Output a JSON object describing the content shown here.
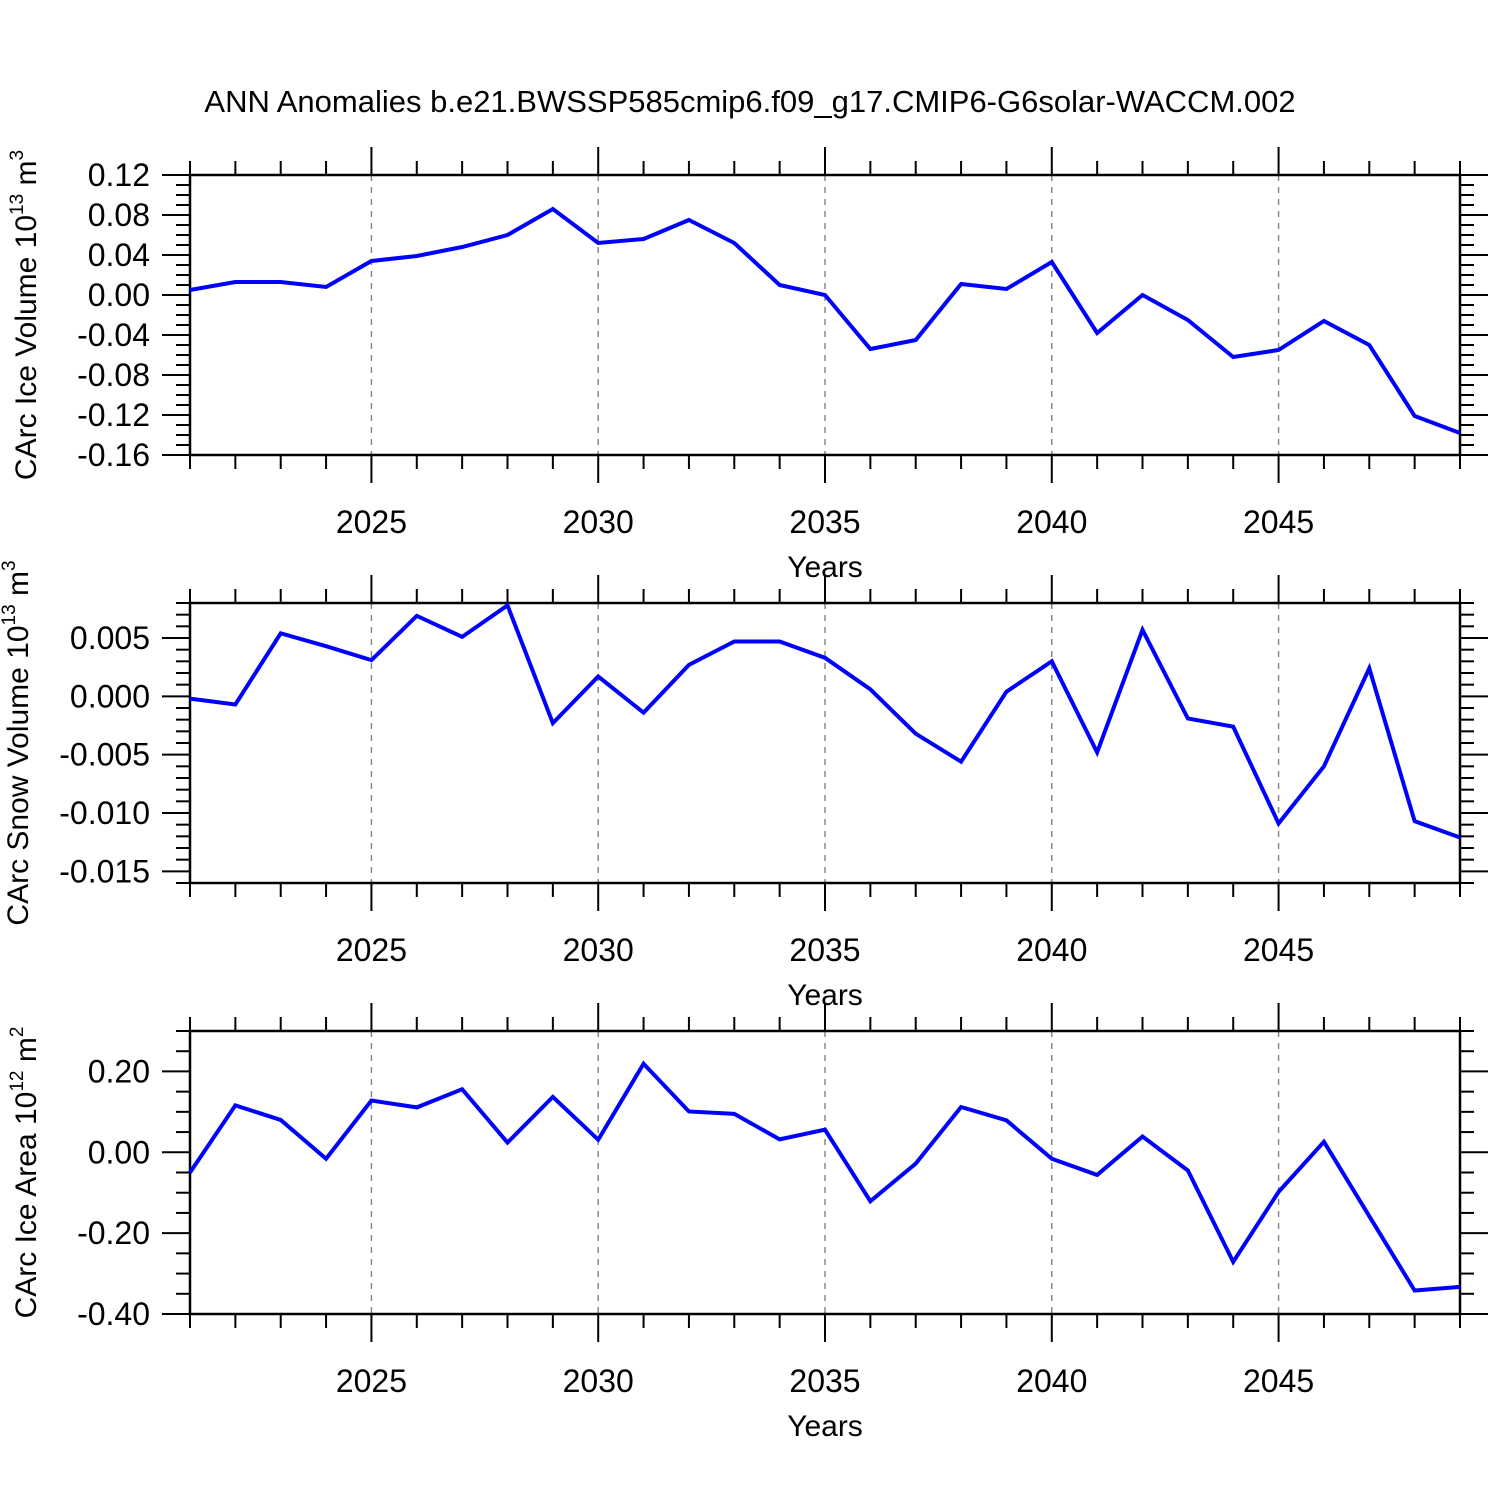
{
  "title": "ANN Anomalies b.e21.BWSSP585cmip6.f09_g17.CMIP6-G6solar-WACCM.002",
  "figure": {
    "background": "#ffffff",
    "line_color": "#0000ff",
    "grid_color": "#888888",
    "axis_color": "#000000"
  },
  "chart_data": [
    {
      "type": "line",
      "name": "ice-volume",
      "xlabel": "Years",
      "ylabel_parts": [
        {
          "t": "CArc Ice Volume 10"
        },
        {
          "t": "13",
          "sup": true
        },
        {
          "t": " m"
        },
        {
          "t": "3",
          "sup": true
        }
      ],
      "x": [
        2021,
        2022,
        2023,
        2024,
        2025,
        2026,
        2027,
        2028,
        2029,
        2030,
        2031,
        2032,
        2033,
        2034,
        2035,
        2036,
        2037,
        2038,
        2039,
        2040,
        2041,
        2042,
        2043,
        2044,
        2045,
        2046,
        2047,
        2048,
        2049
      ],
      "values": [
        0.005,
        0.013,
        0.013,
        0.008,
        0.034,
        0.039,
        0.048,
        0.06,
        0.086,
        0.052,
        0.056,
        0.075,
        0.052,
        0.01,
        0.0,
        -0.054,
        -0.045,
        0.011,
        0.006,
        0.033,
        -0.038,
        0.0,
        -0.025,
        -0.062,
        -0.055,
        -0.026,
        -0.05,
        -0.121,
        -0.138
      ],
      "xlim": [
        2021,
        2049
      ],
      "ylim": [
        -0.16,
        0.12
      ],
      "yticks_major": [
        0.12,
        0.08,
        0.04,
        0.0,
        -0.04,
        -0.08,
        -0.12,
        -0.16
      ],
      "ytick_labels": [
        "0.12",
        "0.08",
        "0.04",
        "0.00",
        "-0.04",
        "-0.08",
        "-0.12",
        "-0.16"
      ],
      "ytick_minor_step": 0.01,
      "xticks_major": [
        2025,
        2030,
        2035,
        2040,
        2045
      ],
      "xtick_minor_step": 1,
      "grid": "vertical-dashed",
      "legend": "none"
    },
    {
      "type": "line",
      "name": "snow-volume",
      "xlabel": "Years",
      "ylabel_parts": [
        {
          "t": "CArc Snow Volume 10"
        },
        {
          "t": "13",
          "sup": true
        },
        {
          "t": " m"
        },
        {
          "t": "3",
          "sup": true
        }
      ],
      "x": [
        2021,
        2022,
        2023,
        2024,
        2025,
        2026,
        2027,
        2028,
        2029,
        2030,
        2031,
        2032,
        2033,
        2034,
        2035,
        2036,
        2037,
        2038,
        2039,
        2040,
        2041,
        2042,
        2043,
        2044,
        2045,
        2046,
        2047,
        2048,
        2049
      ],
      "values": [
        -0.0002,
        -0.0007,
        0.0054,
        0.0043,
        0.0031,
        0.0069,
        0.0051,
        0.0078,
        -0.0023,
        0.0017,
        -0.0014,
        0.0027,
        0.0047,
        0.0047,
        0.0033,
        0.0006,
        -0.0032,
        -0.0056,
        0.0004,
        0.003,
        -0.0048,
        0.0057,
        -0.0019,
        -0.0026,
        -0.0109,
        -0.006,
        0.0024,
        -0.0107,
        -0.0121
      ],
      "xlim": [
        2021,
        2049
      ],
      "ylim": [
        -0.016,
        0.008
      ],
      "yticks_major": [
        0.005,
        0.0,
        -0.005,
        -0.01,
        -0.015
      ],
      "ytick_labels": [
        "0.005",
        "0.000",
        "-0.005",
        "-0.010",
        "-0.015"
      ],
      "ytick_minor_step": 0.001,
      "xticks_major": [
        2025,
        2030,
        2035,
        2040,
        2045
      ],
      "xtick_minor_step": 1,
      "grid": "vertical-dashed",
      "legend": "none"
    },
    {
      "type": "line",
      "name": "ice-area",
      "xlabel": "Years",
      "ylabel_parts": [
        {
          "t": "CArc Ice Area 10"
        },
        {
          "t": "12",
          "sup": true
        },
        {
          "t": " m"
        },
        {
          "t": "2",
          "sup": true
        }
      ],
      "x": [
        2021,
        2022,
        2023,
        2024,
        2025,
        2026,
        2027,
        2028,
        2029,
        2030,
        2031,
        2032,
        2033,
        2034,
        2035,
        2036,
        2037,
        2038,
        2039,
        2040,
        2041,
        2042,
        2043,
        2044,
        2045,
        2046,
        2047,
        2048,
        2049
      ],
      "values": [
        -0.05,
        0.116,
        0.08,
        -0.016,
        0.128,
        0.111,
        0.156,
        0.024,
        0.137,
        0.031,
        0.219,
        0.101,
        0.095,
        0.032,
        0.056,
        -0.121,
        -0.028,
        0.112,
        0.079,
        -0.016,
        -0.056,
        0.039,
        -0.045,
        -0.271,
        -0.098,
        0.026,
        -0.158,
        -0.342,
        -0.333
      ],
      "xlim": [
        2021,
        2049
      ],
      "ylim": [
        -0.4,
        0.3
      ],
      "yticks_major": [
        0.2,
        0.0,
        -0.2,
        -0.4
      ],
      "ytick_labels": [
        "0.20",
        "0.00",
        "-0.20",
        "-0.40"
      ],
      "ytick_minor_step": 0.05,
      "xticks_major": [
        2025,
        2030,
        2035,
        2040,
        2045
      ],
      "xtick_minor_step": 1,
      "grid": "vertical-dashed",
      "legend": "none"
    }
  ]
}
